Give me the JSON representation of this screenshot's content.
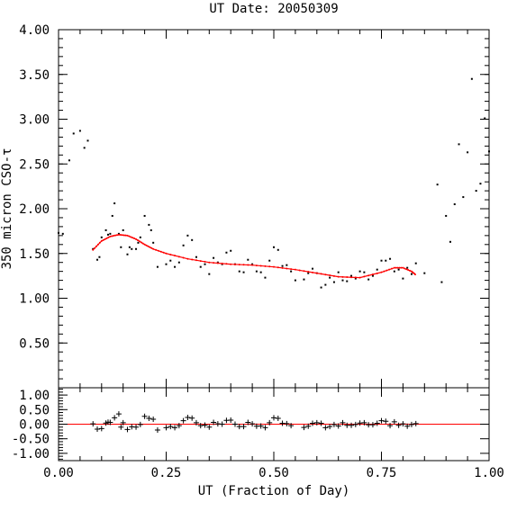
{
  "chart_data": {
    "type": "scatter",
    "title": "UT Date: 20050309",
    "xlabel": "UT (Fraction of Day)",
    "ylabel": "350 micron CSO-τ",
    "xlim": [
      0.0,
      1.0
    ],
    "ylim": [
      0.0,
      4.0
    ],
    "x_ticks": [
      "0.00",
      "0.25",
      "0.50",
      "0.75",
      "1.00"
    ],
    "y_ticks": [
      "0.50",
      "1.00",
      "1.50",
      "2.00",
      "2.50",
      "3.00",
      "3.50",
      "4.00"
    ],
    "colors": {
      "points": "#000000",
      "fit": "#ff0000",
      "zero_line": "#ff0000"
    },
    "series": [
      {
        "marker": "dot",
        "x": [
          0.0,
          0.01,
          0.025,
          0.035,
          0.05,
          0.06,
          0.068,
          0.08,
          0.09,
          0.095,
          0.1,
          0.11,
          0.115,
          0.12,
          0.125,
          0.13,
          0.14,
          0.145,
          0.15,
          0.16,
          0.165,
          0.17,
          0.18,
          0.185,
          0.19,
          0.2,
          0.21,
          0.215,
          0.22,
          0.23,
          0.25,
          0.26,
          0.27,
          0.28,
          0.29,
          0.3,
          0.31,
          0.32,
          0.33,
          0.34,
          0.35,
          0.36,
          0.37,
          0.38,
          0.39,
          0.4,
          0.41,
          0.42,
          0.43,
          0.44,
          0.45,
          0.46,
          0.47,
          0.48,
          0.49,
          0.5,
          0.51,
          0.52,
          0.53,
          0.54,
          0.55,
          0.57,
          0.58,
          0.59,
          0.6,
          0.61,
          0.62,
          0.63,
          0.64,
          0.65,
          0.66,
          0.67,
          0.68,
          0.69,
          0.7,
          0.71,
          0.72,
          0.73,
          0.74,
          0.75,
          0.76,
          0.77,
          0.78,
          0.79,
          0.8,
          0.81,
          0.82,
          0.83,
          0.85,
          0.88,
          0.89,
          0.9,
          0.91,
          0.92,
          0.93,
          0.94,
          0.95,
          0.96,
          0.97,
          0.98,
          0.99,
          1.0
        ],
        "y": [
          1.73,
          1.72,
          2.54,
          2.84,
          2.87,
          2.68,
          2.76,
          1.55,
          1.43,
          1.46,
          1.68,
          1.76,
          1.71,
          1.72,
          1.92,
          2.06,
          1.72,
          1.57,
          1.76,
          1.49,
          1.57,
          1.55,
          1.55,
          1.62,
          1.68,
          1.92,
          1.82,
          1.76,
          1.62,
          1.35,
          1.38,
          1.42,
          1.35,
          1.4,
          1.59,
          1.7,
          1.65,
          1.46,
          1.35,
          1.38,
          1.27,
          1.45,
          1.4,
          1.38,
          1.51,
          1.53,
          1.38,
          1.3,
          1.29,
          1.43,
          1.38,
          1.3,
          1.29,
          1.23,
          1.42,
          1.57,
          1.54,
          1.36,
          1.37,
          1.3,
          1.2,
          1.21,
          1.28,
          1.33,
          1.28,
          1.12,
          1.15,
          1.23,
          1.18,
          1.29,
          1.2,
          1.19,
          1.25,
          1.22,
          1.3,
          1.29,
          1.21,
          1.25,
          1.32,
          1.42,
          1.42,
          1.44,
          1.3,
          1.32,
          1.22,
          1.34,
          1.27,
          1.39,
          1.28,
          2.27,
          1.18,
          1.92,
          1.63,
          2.05,
          2.72,
          2.13,
          2.63,
          3.45,
          2.2,
          2.28,
          3.01,
          2.64
        ]
      },
      {
        "type": "line",
        "x": [
          0.08,
          0.1,
          0.12,
          0.14,
          0.16,
          0.18,
          0.2,
          0.22,
          0.25,
          0.3,
          0.35,
          0.4,
          0.45,
          0.5,
          0.55,
          0.6,
          0.65,
          0.7,
          0.75,
          0.78,
          0.8,
          0.82,
          0.83
        ],
        "y": [
          1.54,
          1.64,
          1.69,
          1.71,
          1.7,
          1.66,
          1.6,
          1.55,
          1.5,
          1.44,
          1.4,
          1.38,
          1.37,
          1.35,
          1.32,
          1.28,
          1.24,
          1.23,
          1.29,
          1.34,
          1.34,
          1.3,
          1.26
        ]
      }
    ],
    "residuals": {
      "ylim": [
        -1.25,
        1.25
      ],
      "y_ticks": [
        "1.00",
        "0.50",
        "0.00",
        "-0.50",
        "-1.00"
      ],
      "marker": "plus",
      "x": [
        0.08,
        0.09,
        0.1,
        0.11,
        0.115,
        0.12,
        0.13,
        0.14,
        0.145,
        0.15,
        0.16,
        0.17,
        0.18,
        0.19,
        0.2,
        0.21,
        0.22,
        0.23,
        0.25,
        0.26,
        0.27,
        0.28,
        0.29,
        0.3,
        0.31,
        0.32,
        0.33,
        0.34,
        0.35,
        0.36,
        0.37,
        0.38,
        0.39,
        0.4,
        0.41,
        0.42,
        0.43,
        0.44,
        0.45,
        0.46,
        0.47,
        0.48,
        0.49,
        0.5,
        0.51,
        0.52,
        0.53,
        0.54,
        0.57,
        0.58,
        0.59,
        0.6,
        0.61,
        0.62,
        0.63,
        0.64,
        0.65,
        0.66,
        0.67,
        0.68,
        0.69,
        0.7,
        0.71,
        0.72,
        0.73,
        0.74,
        0.75,
        0.76,
        0.77,
        0.78,
        0.79,
        0.8,
        0.81,
        0.82,
        0.83
      ],
      "y": [
        0.01,
        -0.17,
        -0.15,
        0.04,
        0.07,
        0.06,
        0.22,
        0.35,
        -0.1,
        0.05,
        -0.18,
        -0.09,
        -0.1,
        -0.01,
        0.27,
        0.2,
        0.17,
        -0.2,
        -0.12,
        -0.08,
        -0.12,
        -0.05,
        0.12,
        0.23,
        0.21,
        0.05,
        -0.05,
        -0.03,
        -0.1,
        0.06,
        0.01,
        0.0,
        0.13,
        0.14,
        0.0,
        -0.08,
        -0.08,
        0.06,
        0.01,
        -0.07,
        -0.06,
        -0.12,
        0.05,
        0.22,
        0.2,
        0.03,
        0.02,
        -0.05,
        -0.11,
        -0.07,
        0.03,
        0.05,
        0.03,
        -0.12,
        -0.08,
        -0.01,
        -0.06,
        0.05,
        -0.04,
        -0.04,
        -0.01,
        0.04,
        0.05,
        -0.02,
        -0.02,
        0.03,
        0.12,
        0.1,
        -0.05,
        0.08,
        -0.04,
        0.01,
        -0.07,
        -0.01,
        0.02
      ]
    }
  }
}
